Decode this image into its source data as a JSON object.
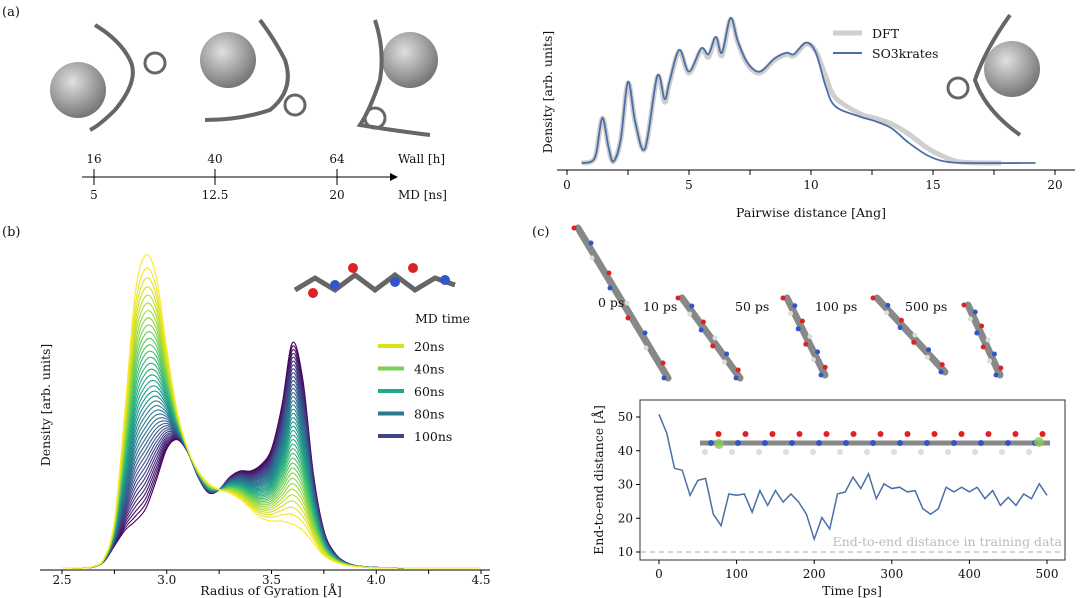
{
  "panels": {
    "a": "(a)",
    "b": "(b)",
    "c": "(c)"
  },
  "timeline": {
    "wall_label": "Wall [h]",
    "md_label": "MD [ns]",
    "wall_ticks": [
      "16",
      "40",
      "64"
    ],
    "md_ticks": [
      "5",
      "12.5",
      "20"
    ]
  },
  "snapshots": {
    "labels": [
      "0 ps",
      "10 ps",
      "50 ps",
      "100 ps",
      "500 ps"
    ]
  },
  "colors": {
    "so3krates": "#4a6fa5",
    "dft": "#cfcfcf",
    "training_line": "#aaaaaa",
    "viridis": [
      "#fde725",
      "#b5de2b",
      "#6ece58",
      "#35b779",
      "#1f9e89",
      "#26828e",
      "#31688e",
      "#3e4989",
      "#482878",
      "#440154"
    ]
  },
  "chart_data": [
    {
      "id": "pairwise",
      "type": "line",
      "title": "",
      "xlabel": "Pairwise distance [Ang]",
      "ylabel": "Density [arb. units]",
      "xlim": [
        0,
        20
      ],
      "xticks": [
        "0",
        "5",
        "10",
        "15",
        "20"
      ],
      "legend": {
        "placement": "top-right",
        "entries": [
          "DFT",
          "SO3krates"
        ]
      },
      "series": [
        {
          "name": "DFT",
          "x": [
            0.6,
            1.0,
            1.2,
            1.45,
            1.7,
            1.9,
            2.2,
            2.5,
            2.8,
            3.2,
            3.7,
            4.0,
            4.2,
            4.6,
            5.0,
            5.5,
            5.8,
            6.1,
            6.35,
            6.7,
            7.0,
            7.4,
            7.9,
            8.5,
            9.0,
            9.3,
            9.8,
            10.2,
            10.6,
            11.0,
            12.0,
            12.6,
            13.3,
            14.0,
            14.8,
            15.5,
            16.2,
            17.8
          ],
          "y": [
            0,
            0.01,
            0.07,
            0.31,
            0.11,
            0.01,
            0.16,
            0.55,
            0.28,
            0.1,
            0.59,
            0.42,
            0.55,
            0.77,
            0.62,
            0.78,
            0.73,
            0.86,
            0.74,
            0.99,
            0.83,
            0.68,
            0.62,
            0.71,
            0.75,
            0.74,
            0.82,
            0.77,
            0.6,
            0.45,
            0.34,
            0.31,
            0.27,
            0.2,
            0.1,
            0.04,
            0.005,
            0
          ]
        },
        {
          "name": "SO3krates",
          "x": [
            0.6,
            1.0,
            1.2,
            1.45,
            1.7,
            1.9,
            2.2,
            2.5,
            2.8,
            3.2,
            3.7,
            4.0,
            4.2,
            4.6,
            5.0,
            5.5,
            5.8,
            6.1,
            6.35,
            6.7,
            7.0,
            7.4,
            7.9,
            8.5,
            9.0,
            9.3,
            9.8,
            10.2,
            10.6,
            11.0,
            12.0,
            12.6,
            13.3,
            14.0,
            14.8,
            15.5,
            16.5,
            19.2
          ],
          "y": [
            0,
            0.01,
            0.07,
            0.31,
            0.11,
            0.01,
            0.16,
            0.56,
            0.28,
            0.1,
            0.6,
            0.44,
            0.56,
            0.78,
            0.63,
            0.79,
            0.75,
            0.87,
            0.76,
            1.0,
            0.84,
            0.69,
            0.63,
            0.72,
            0.76,
            0.75,
            0.83,
            0.76,
            0.53,
            0.39,
            0.32,
            0.29,
            0.24,
            0.14,
            0.05,
            0.01,
            0,
            0
          ]
        }
      ]
    },
    {
      "id": "gyration",
      "type": "line",
      "xlabel": "Radius of Gyration [Å]",
      "ylabel": "Density [arb. units]",
      "xlim": [
        2.5,
        4.5
      ],
      "xticks": [
        "2.5",
        "3.0",
        "3.5",
        "4.0",
        "4.5"
      ],
      "legend": {
        "placement": "right",
        "title": "MD time",
        "entries": [
          "20ns",
          "40ns",
          "60ns",
          "80ns",
          "100ns"
        ],
        "colors": [
          "#d8e219",
          "#7ad151",
          "#22a884",
          "#2a788e",
          "#414487"
        ]
      },
      "n_curves": 40,
      "x": [
        2.5,
        2.55,
        2.6,
        2.65,
        2.7,
        2.75,
        2.8,
        2.85,
        2.9,
        2.95,
        3.0,
        3.05,
        3.1,
        3.15,
        3.2,
        3.25,
        3.3,
        3.35,
        3.4,
        3.45,
        3.5,
        3.55,
        3.6,
        3.65,
        3.7,
        3.75,
        3.8,
        3.85,
        3.9,
        3.95,
        4.0,
        4.05,
        4.1,
        4.15,
        4.2,
        4.25,
        4.3,
        4.35,
        4.4,
        4.45,
        4.5
      ],
      "first_curve": [
        0,
        0,
        0,
        0.005,
        0.03,
        0.15,
        0.5,
        0.88,
        1.0,
        0.93,
        0.7,
        0.5,
        0.38,
        0.31,
        0.27,
        0.25,
        0.24,
        0.22,
        0.19,
        0.16,
        0.15,
        0.15,
        0.14,
        0.12,
        0.08,
        0.04,
        0.02,
        0.01,
        0.005,
        0.002,
        0,
        0,
        0,
        0,
        0,
        0,
        0,
        0,
        0,
        0,
        0
      ],
      "last_curve": [
        0,
        0,
        0,
        0.003,
        0.02,
        0.07,
        0.12,
        0.15,
        0.19,
        0.28,
        0.38,
        0.41,
        0.37,
        0.29,
        0.24,
        0.25,
        0.29,
        0.31,
        0.31,
        0.33,
        0.38,
        0.52,
        0.72,
        0.6,
        0.3,
        0.12,
        0.05,
        0.02,
        0.008,
        0.004,
        0.002,
        0.001,
        0,
        0,
        0,
        0,
        0,
        0,
        0,
        0,
        0
      ]
    },
    {
      "id": "end_to_end",
      "type": "line",
      "xlabel": "Time [ps]",
      "ylabel": "End-to-end distance [Å]",
      "xlim": [
        -25,
        525
      ],
      "ylim": [
        7,
        55
      ],
      "xticks": [
        0,
        100,
        200,
        300,
        400,
        500
      ],
      "yticks": [
        10,
        20,
        30,
        40,
        50
      ],
      "annotation": "End-to-end distance in training data",
      "reference_y": 10,
      "x": [
        0,
        10,
        20,
        30,
        40,
        50,
        60,
        70,
        80,
        90,
        100,
        110,
        120,
        130,
        140,
        150,
        160,
        170,
        180,
        190,
        200,
        210,
        220,
        230,
        240,
        250,
        260,
        270,
        280,
        290,
        300,
        310,
        320,
        330,
        340,
        350,
        360,
        370,
        380,
        390,
        400,
        410,
        420,
        430,
        440,
        450,
        460,
        470,
        480,
        490,
        500
      ],
      "y": [
        52,
        44,
        36,
        33,
        28,
        30,
        33,
        20,
        19,
        26,
        28,
        26,
        23,
        27,
        25,
        27,
        26,
        26,
        26,
        20,
        15,
        19,
        18,
        26,
        29,
        31,
        30,
        32,
        27,
        29,
        30,
        28,
        29,
        27,
        24,
        20,
        24,
        28,
        29,
        28,
        29,
        28,
        27,
        27,
        25,
        25,
        25,
        26,
        27,
        29,
        28
      ]
    }
  ]
}
